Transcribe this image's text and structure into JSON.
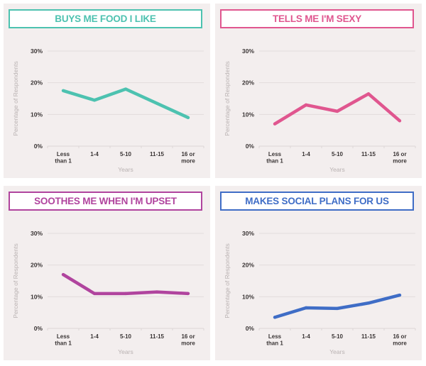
{
  "chart_data": [
    {
      "type": "line",
      "title": "BUYS ME FOOD I LIKE",
      "color": "#4dc2b0",
      "categories": [
        "Less than 1",
        "1-4",
        "5-10",
        "11-15",
        "16 or more"
      ],
      "category_lines": [
        [
          "Less",
          "than 1"
        ],
        [
          "1-4"
        ],
        [
          "5-10"
        ],
        [
          "11-15"
        ],
        [
          "16 or",
          "more"
        ]
      ],
      "values": [
        17.5,
        14.5,
        18,
        13.5,
        9
      ],
      "xlabel": "Years",
      "ylabel": "Percentage of Respondents",
      "ylim": [
        0,
        30
      ],
      "yticks": [
        "0%",
        "10%",
        "20%",
        "30%"
      ],
      "grid": true
    },
    {
      "type": "line",
      "title": "TELLS ME I'M SEXY",
      "color": "#e0568f",
      "categories": [
        "Less than 1",
        "1-4",
        "5-10",
        "11-15",
        "16 or more"
      ],
      "category_lines": [
        [
          "Less",
          "than 1"
        ],
        [
          "1-4"
        ],
        [
          "5-10"
        ],
        [
          "11-15"
        ],
        [
          "16 or",
          "more"
        ]
      ],
      "values": [
        7,
        13,
        11,
        16.5,
        8
      ],
      "xlabel": "Years",
      "ylabel": "Percentage of Respondents",
      "ylim": [
        0,
        30
      ],
      "yticks": [
        "0%",
        "10%",
        "20%",
        "30%"
      ],
      "grid": true
    },
    {
      "type": "line",
      "title": "SOOTHES ME WHEN I'M UPSET",
      "color": "#b0449e",
      "categories": [
        "Less than 1",
        "1-4",
        "5-10",
        "11-15",
        "16 or more"
      ],
      "category_lines": [
        [
          "Less",
          "than 1"
        ],
        [
          "1-4"
        ],
        [
          "5-10"
        ],
        [
          "11-15"
        ],
        [
          "16 or",
          "more"
        ]
      ],
      "values": [
        17,
        11,
        11,
        11.5,
        11
      ],
      "xlabel": "Years",
      "ylabel": "Percentage of Respondents",
      "ylim": [
        0,
        30
      ],
      "yticks": [
        "0%",
        "10%",
        "20%",
        "30%"
      ],
      "grid": true
    },
    {
      "type": "line",
      "title": "MAKES SOCIAL PLANS FOR US",
      "color": "#3f6dc6",
      "categories": [
        "Less than 1",
        "1-4",
        "5-10",
        "11-15",
        "16 or more"
      ],
      "category_lines": [
        [
          "Less",
          "than 1"
        ],
        [
          "1-4"
        ],
        [
          "5-10"
        ],
        [
          "11-15"
        ],
        [
          "16 or",
          "more"
        ]
      ],
      "values": [
        3.5,
        6.5,
        6.3,
        8,
        10.5
      ],
      "xlabel": "Years",
      "ylabel": "Percentage of Respondents",
      "ylim": [
        0,
        30
      ],
      "yticks": [
        "0%",
        "10%",
        "20%",
        "30%"
      ],
      "grid": true
    }
  ]
}
